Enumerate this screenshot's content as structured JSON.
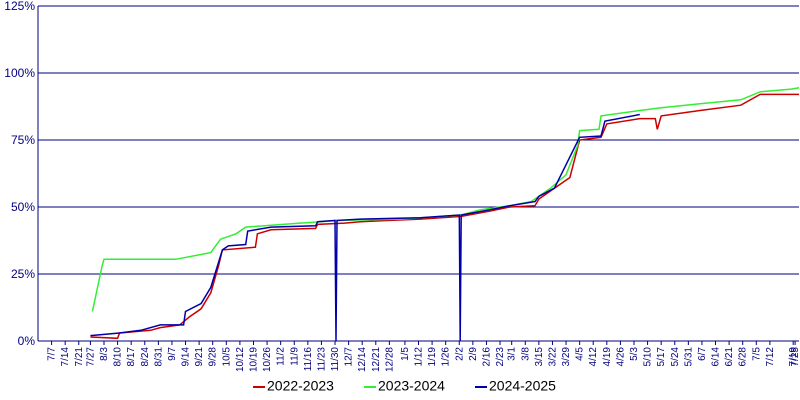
{
  "chart_data": {
    "type": "line",
    "xlim": [
      -1,
      391
    ],
    "xticks": [
      {
        "value": 6,
        "label": "7/7"
      },
      {
        "value": 13,
        "label": "7/14"
      },
      {
        "value": 20,
        "label": "7/21"
      },
      {
        "value": 26,
        "label": "7/27"
      },
      {
        "value": 33,
        "label": "8/3"
      },
      {
        "value": 40,
        "label": "8/10"
      },
      {
        "value": 47,
        "label": "8/17"
      },
      {
        "value": 54,
        "label": "8/24"
      },
      {
        "value": 61,
        "label": "8/31"
      },
      {
        "value": 68,
        "label": "9/7"
      },
      {
        "value": 75,
        "label": "9/14"
      },
      {
        "value": 82,
        "label": "9/21"
      },
      {
        "value": 89,
        "label": "9/28"
      },
      {
        "value": 96,
        "label": "10/5"
      },
      {
        "value": 103,
        "label": "10/12"
      },
      {
        "value": 110,
        "label": "10/19"
      },
      {
        "value": 117,
        "label": "10/26"
      },
      {
        "value": 124,
        "label": "11/2"
      },
      {
        "value": 131,
        "label": "11/9"
      },
      {
        "value": 138,
        "label": "11/16"
      },
      {
        "value": 145,
        "label": "11/23"
      },
      {
        "value": 152,
        "label": "11/30"
      },
      {
        "value": 159,
        "label": "12/7"
      },
      {
        "value": 166,
        "label": "12/14"
      },
      {
        "value": 173,
        "label": "12/21"
      },
      {
        "value": 180,
        "label": "12/28"
      },
      {
        "value": 188,
        "label": "1/5"
      },
      {
        "value": 195,
        "label": "1/12"
      },
      {
        "value": 202,
        "label": "1/19"
      },
      {
        "value": 209,
        "label": "1/26"
      },
      {
        "value": 216,
        "label": "2/2"
      },
      {
        "value": 223,
        "label": "2/9"
      },
      {
        "value": 230,
        "label": "2/16"
      },
      {
        "value": 237,
        "label": "2/23"
      },
      {
        "value": 243,
        "label": "3/1"
      },
      {
        "value": 250,
        "label": "3/8"
      },
      {
        "value": 257,
        "label": "3/15"
      },
      {
        "value": 264,
        "label": "3/22"
      },
      {
        "value": 271,
        "label": "3/29"
      },
      {
        "value": 278,
        "label": "4/5"
      },
      {
        "value": 285,
        "label": "4/12"
      },
      {
        "value": 292,
        "label": "4/19"
      },
      {
        "value": 299,
        "label": "4/26"
      },
      {
        "value": 306,
        "label": "5/3"
      },
      {
        "value": 313,
        "label": "5/10"
      },
      {
        "value": 320,
        "label": "5/17"
      },
      {
        "value": 327,
        "label": "5/24"
      },
      {
        "value": 334,
        "label": "5/31"
      },
      {
        "value": 341,
        "label": "6/7"
      },
      {
        "value": 348,
        "label": "6/14"
      },
      {
        "value": 355,
        "label": "6/21"
      },
      {
        "value": 362,
        "label": "6/28"
      },
      {
        "value": 369,
        "label": "7/5"
      },
      {
        "value": 376,
        "label": "7/12"
      },
      {
        "value": 388,
        "label": "7/19"
      },
      {
        "value": 389,
        "label": "7/25"
      }
    ],
    "ylim": [
      0,
      125
    ],
    "yticks": [
      {
        "value": 0,
        "label": "0%"
      },
      {
        "value": 25,
        "label": "25%"
      },
      {
        "value": 50,
        "label": "50%"
      },
      {
        "value": 75,
        "label": "75%"
      },
      {
        "value": 100,
        "label": "100%"
      },
      {
        "value": 125,
        "label": "125%"
      }
    ],
    "grid": true,
    "legend": "bottom",
    "series": [
      {
        "name": "2022-2023",
        "color": "#cc0000",
        "x": [
          26,
          40,
          41,
          57,
          62,
          72,
          77,
          83,
          88,
          92,
          94,
          111,
          112,
          119,
          142,
          143,
          157,
          165,
          196,
          217,
          232,
          242,
          255,
          257,
          265,
          273,
          278,
          289,
          292,
          309,
          317,
          318,
          320,
          340,
          361,
          371,
          391
        ],
        "values": [
          1.5,
          1,
          3,
          4,
          5,
          6,
          9,
          12,
          18,
          28,
          34,
          35,
          40,
          41.5,
          42,
          43.5,
          44,
          44.5,
          45.5,
          46.5,
          48.5,
          50,
          50.5,
          53,
          57,
          61,
          75,
          76,
          81,
          83,
          83,
          79,
          84,
          86,
          88,
          92,
          92
        ]
      },
      {
        "name": "2023-2024",
        "color": "#33ee33",
        "x": [
          27,
          32,
          33,
          70,
          88,
          93,
          101,
          106,
          134,
          155,
          186,
          217,
          227,
          242,
          253,
          263,
          271,
          277,
          278,
          288,
          289,
          309,
          320,
          340,
          361,
          371,
          387,
          391
        ],
        "values": [
          11,
          28,
          30.5,
          30.5,
          33,
          38,
          40,
          42.5,
          44,
          45,
          45.5,
          47,
          49,
          50.5,
          52,
          57,
          62,
          73,
          78.5,
          79,
          84,
          86,
          87,
          88.5,
          90,
          93,
          94,
          94.5
        ]
      },
      {
        "name": "2024-2025",
        "color": "#0000aa",
        "x": [
          26,
          41,
          52,
          62,
          74,
          75,
          83,
          88,
          94,
          97,
          106,
          107,
          119,
          142,
          143,
          152,
          152.5,
          153,
          165,
          196,
          216,
          216.5,
          217,
          232,
          242,
          255,
          257,
          265,
          278,
          289,
          291,
          309
        ],
        "values": [
          2,
          3,
          4,
          6,
          6,
          11,
          14,
          20,
          34,
          35.5,
          36,
          41,
          42.5,
          43,
          44.5,
          45,
          0,
          45,
          45.5,
          46,
          47,
          0,
          47,
          49,
          50.5,
          52,
          54,
          57,
          76,
          76.5,
          82,
          84.5
        ]
      }
    ]
  }
}
